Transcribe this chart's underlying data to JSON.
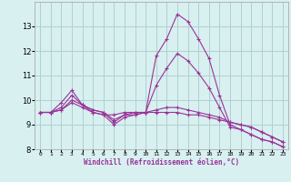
{
  "xlabel": "Windchill (Refroidissement éolien,°C)",
  "x_values": [
    0,
    1,
    2,
    3,
    4,
    5,
    6,
    7,
    8,
    9,
    10,
    11,
    12,
    13,
    14,
    15,
    16,
    17,
    18,
    19,
    20,
    21,
    22,
    23
  ],
  "line1": [
    9.5,
    9.5,
    9.9,
    10.4,
    9.8,
    9.6,
    9.5,
    9.1,
    9.4,
    9.4,
    9.5,
    11.8,
    12.5,
    13.5,
    13.2,
    12.5,
    11.7,
    10.2,
    9.0,
    8.8,
    8.6,
    8.4,
    8.3,
    8.1
  ],
  "line2": [
    9.5,
    9.5,
    9.6,
    9.9,
    9.7,
    9.5,
    9.4,
    9.4,
    9.5,
    9.5,
    9.5,
    9.5,
    9.5,
    9.5,
    9.4,
    9.4,
    9.3,
    9.2,
    9.1,
    9.0,
    8.9,
    8.7,
    8.5,
    8.3
  ],
  "line3": [
    9.5,
    9.5,
    9.6,
    10.0,
    9.8,
    9.6,
    9.5,
    9.2,
    9.4,
    9.5,
    9.5,
    9.6,
    9.7,
    9.7,
    9.6,
    9.5,
    9.4,
    9.3,
    9.1,
    9.0,
    8.9,
    8.7,
    8.5,
    8.3
  ],
  "line4": [
    9.5,
    9.5,
    9.7,
    10.2,
    9.8,
    9.5,
    9.4,
    9.0,
    9.3,
    9.4,
    9.5,
    10.6,
    11.3,
    11.9,
    11.6,
    11.1,
    10.5,
    9.7,
    8.9,
    8.8,
    8.6,
    8.4,
    8.3,
    8.1
  ],
  "line_color": "#993399",
  "bg_color": "#d8f0f0",
  "grid_color": "#b0d0d0",
  "ylim": [
    8,
    14
  ],
  "yticks": [
    8,
    9,
    10,
    11,
    12,
    13
  ],
  "xlim": [
    -0.5,
    23.5
  ]
}
